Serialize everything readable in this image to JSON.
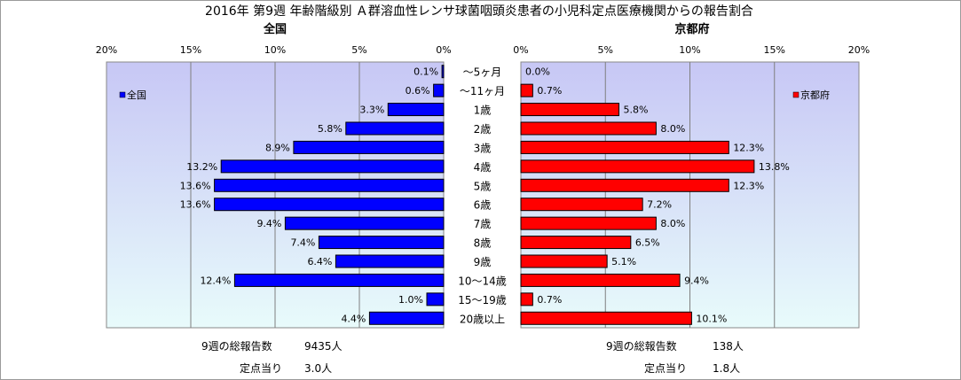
{
  "title": "2016年 第9週 年齢階級別 Ａ群溶血性レンサ球菌咽頭炎患者の小児科定点医療機関からの報告割合",
  "colors": {
    "national_bar": "#0000ff",
    "kyoto_bar": "#ff0000",
    "plot_bg_top": "#c7c7f5",
    "plot_bg_bottom": "#e8fbfb"
  },
  "chart_data": [
    {
      "type": "bar",
      "orientation": "horizontal",
      "direction": "right-to-left",
      "subtitle": "全国",
      "categories": [
        "～5ヶ月",
        "～11ヶ月",
        "1歳",
        "2歳",
        "3歳",
        "4歳",
        "5歳",
        "6歳",
        "7歳",
        "8歳",
        "9歳",
        "10～14歳",
        "15～19歳",
        "20歳以上"
      ],
      "series": [
        {
          "name": "全国",
          "values": [
            0.1,
            0.6,
            3.3,
            5.8,
            8.9,
            13.2,
            13.6,
            13.6,
            9.4,
            7.4,
            6.4,
            12.4,
            1.0,
            4.4
          ],
          "labels": [
            "0.1%",
            "0.6%",
            "3.3%",
            "5.8%",
            "8.9%",
            "13.2%",
            "13.6%",
            "13.6%",
            "9.4%",
            "7.4%",
            "6.4%",
            "12.4%",
            "1.0%",
            "4.4%"
          ]
        }
      ],
      "xlim": [
        0,
        20
      ],
      "ticks": [
        "0%",
        "5%",
        "10%",
        "15%",
        "20%"
      ],
      "grid": true,
      "legend": "left",
      "footer": [
        {
          "label": "9週の総報告数",
          "value": "9435人"
        },
        {
          "label": "定点当り",
          "value": "3.0人"
        }
      ]
    },
    {
      "type": "bar",
      "orientation": "horizontal",
      "direction": "left-to-right",
      "subtitle": "京都府",
      "categories": [
        "～5ヶ月",
        "～11ヶ月",
        "1歳",
        "2歳",
        "3歳",
        "4歳",
        "5歳",
        "6歳",
        "7歳",
        "8歳",
        "9歳",
        "10～14歳",
        "15～19歳",
        "20歳以上"
      ],
      "series": [
        {
          "name": "京都府",
          "values": [
            0.0,
            0.7,
            5.8,
            8.0,
            12.3,
            13.8,
            12.3,
            7.2,
            8.0,
            6.5,
            5.1,
            9.4,
            0.7,
            10.1
          ],
          "labels": [
            "0.0%",
            "0.7%",
            "5.8%",
            "8.0%",
            "12.3%",
            "13.8%",
            "12.3%",
            "7.2%",
            "8.0%",
            "6.5%",
            "5.1%",
            "9.4%",
            "0.7%",
            "10.1%"
          ]
        }
      ],
      "xlim": [
        0,
        20
      ],
      "ticks": [
        "0%",
        "5%",
        "10%",
        "15%",
        "20%"
      ],
      "grid": true,
      "legend": "right",
      "footer": [
        {
          "label": "9週の総報告数",
          "value": "138人"
        },
        {
          "label": "定点当り",
          "value": "1.8人"
        }
      ]
    }
  ]
}
